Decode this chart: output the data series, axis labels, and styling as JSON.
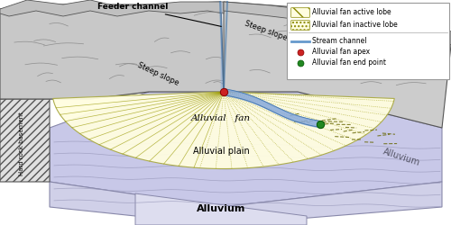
{
  "bg_color": "#ffffff",
  "mountain_color": "#d4d4d4",
  "mountain_dark": "#b8b8b8",
  "mountain_edge": "#555555",
  "fan_color": "#fffde0",
  "plain_color": "#c8c8e8",
  "plain_edge": "#8888aa",
  "basement_color": "#d8d8d8",
  "basement_hatch_color": "#888888",
  "stream_color": "#6699cc",
  "stream_fill": "#88aadd",
  "apex_color": "#cc2222",
  "endpoint_color": "#228822",
  "fan_line_color": "#999900",
  "dash_color": "#666600",
  "contour_color": "#888888",
  "legend_bg": "#ffffff",
  "legend_edge": "#aaaaaa",
  "text_color": "#111111",
  "feeder_label": "Feeder channel",
  "steep1_label": "Steep slope",
  "steep2_label": "Steep slope",
  "fan_label": "Alluvial   fan",
  "plain_label": "Alluvial plain",
  "alluvium_bot_label": "Alluvium",
  "alluvium_right_label": "Alluvium",
  "hardrock_label": "Hard rock basement",
  "leg1": "Alluvial fan active lobe",
  "leg2": "Alluvial fan inactive lobe",
  "leg3": "Stream channel",
  "leg4": "Alluvial fan apex",
  "leg5": "Alluvial fan end point"
}
